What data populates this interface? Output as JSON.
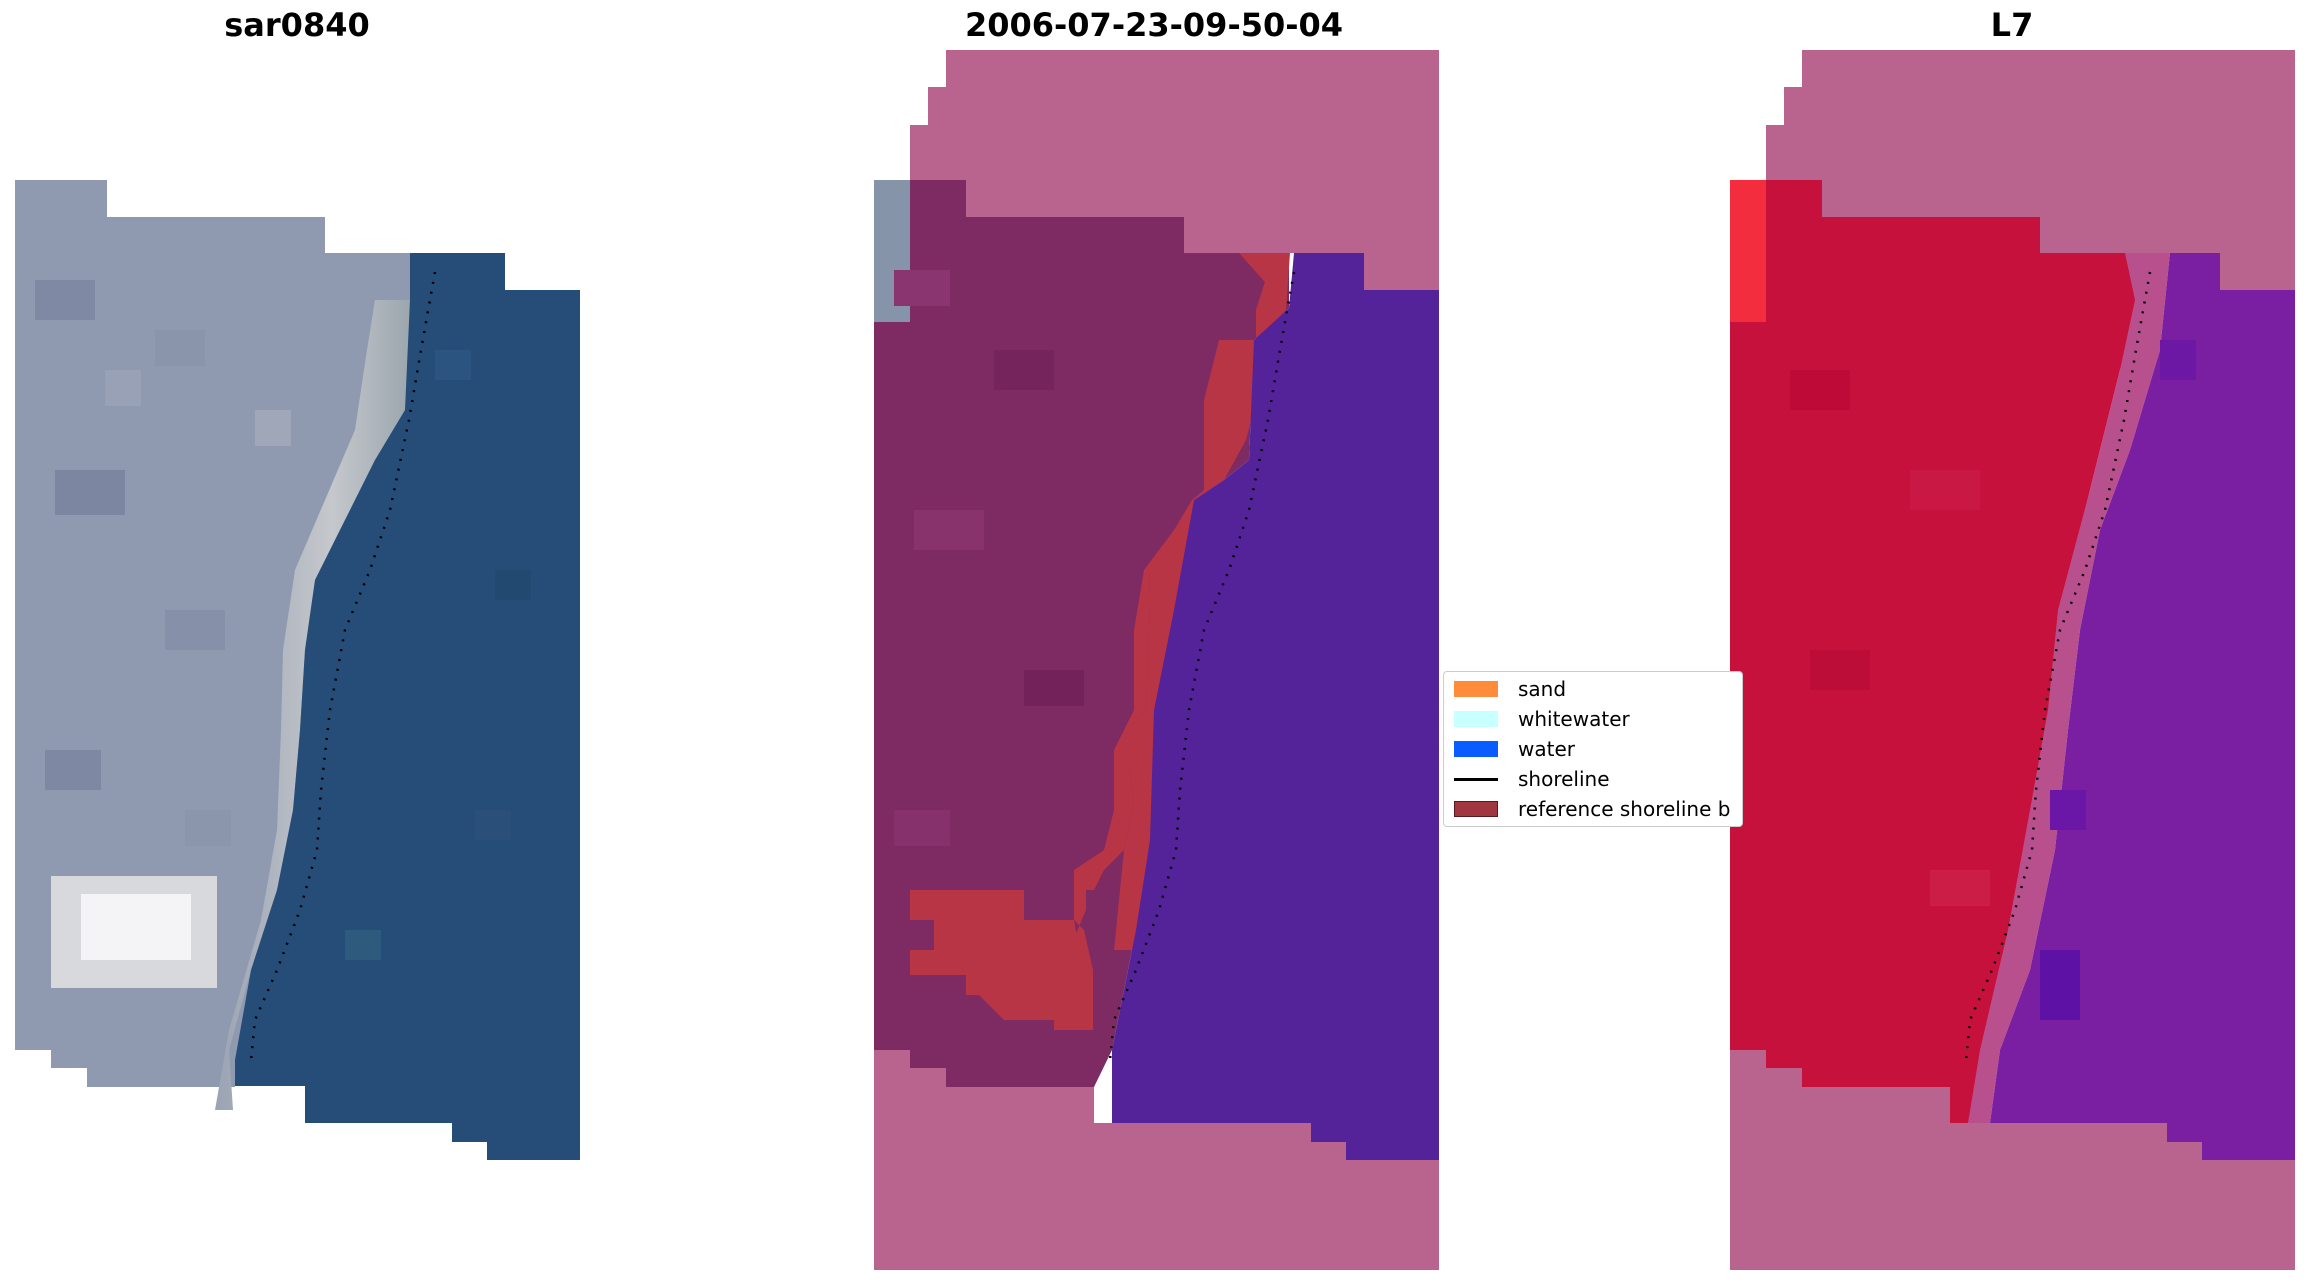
{
  "panels": [
    {
      "title": "sar0840",
      "kind": "rgb-image"
    },
    {
      "title": "2006-07-23-09-50-04",
      "kind": "classified-image"
    },
    {
      "title": "L7",
      "kind": "mndwi-image"
    }
  ],
  "legend": {
    "items": [
      {
        "label": "sand",
        "color": "#ff8c3a",
        "kind": "patch"
      },
      {
        "label": "whitewater",
        "color": "#c8ffff",
        "kind": "patch"
      },
      {
        "label": "water",
        "color": "#0a5cff",
        "kind": "patch"
      },
      {
        "label": "shoreline",
        "color": "#000000",
        "kind": "line"
      },
      {
        "label": "reference shoreline b",
        "color": "#a0373f",
        "kind": "patch"
      }
    ]
  },
  "colors": {
    "sea_rgb": "#254d78",
    "land_rgb": "#8f9ab0",
    "beach_rgb": "#c2c6ca",
    "mask_pink": "#b8648f",
    "land_classified": "#7e2a63",
    "buffer_red": "#b83545",
    "water_classified": "#54239a",
    "land_mndwi": "#c6113c",
    "water_mndwi": "#7a1fa2",
    "shoreline": "#000000"
  }
}
